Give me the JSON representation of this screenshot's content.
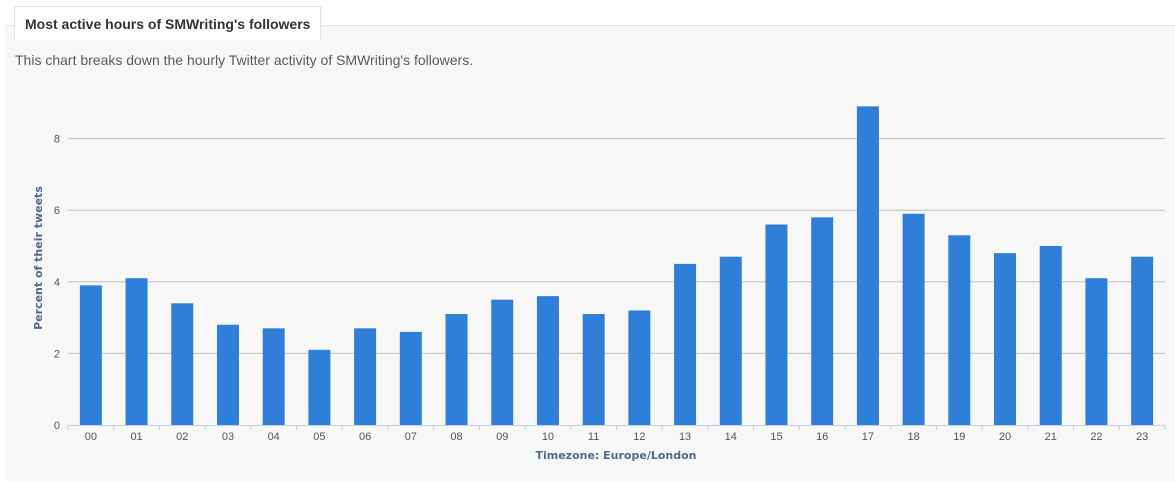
{
  "header": {
    "tab_title": "Most active hours of SMWriting's followers",
    "description": "This chart breaks down the hourly Twitter activity of SMWriting's followers."
  },
  "chart_data": {
    "type": "bar",
    "title": "",
    "xlabel": "Timezone: Europe/London",
    "ylabel": "Percent of their tweets",
    "categories": [
      "00",
      "01",
      "02",
      "03",
      "04",
      "05",
      "06",
      "07",
      "08",
      "09",
      "10",
      "11",
      "12",
      "13",
      "14",
      "15",
      "16",
      "17",
      "18",
      "19",
      "20",
      "21",
      "22",
      "23"
    ],
    "values": [
      3.9,
      4.1,
      3.4,
      2.8,
      2.7,
      2.1,
      2.7,
      2.6,
      3.1,
      3.5,
      3.6,
      3.1,
      3.2,
      4.5,
      4.7,
      5.6,
      5.8,
      8.9,
      5.9,
      5.3,
      4.8,
      5.0,
      4.1,
      4.7
    ],
    "yticks": [
      0,
      2,
      4,
      6,
      8
    ],
    "ylim": [
      0,
      9
    ],
    "grid": true,
    "bar_color": "#2f7ed8",
    "grid_color": "#c0c0c0"
  }
}
